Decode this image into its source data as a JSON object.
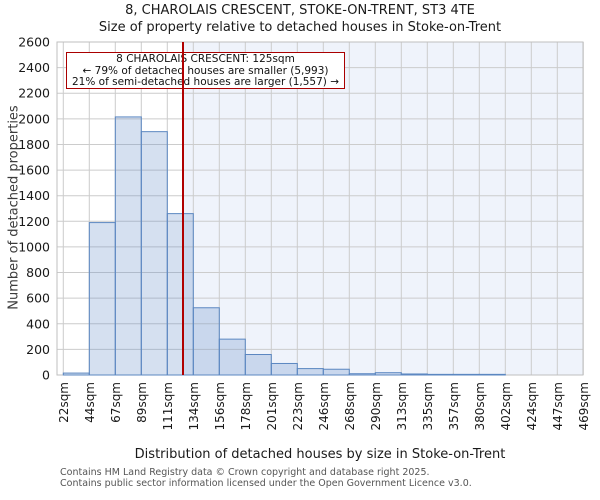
{
  "page": {
    "title_line1": "8, CHAROLAIS CRESCENT, STOKE-ON-TRENT, ST3 4TE",
    "title_line2": "Size of property relative to detached houses in Stoke-on-Trent"
  },
  "annotation": {
    "line1": "8 CHAROLAIS CRESCENT: 125sqm",
    "line2": "← 79% of detached houses are smaller (5,993)",
    "line3": "21% of semi-detached houses are larger (1,557) →"
  },
  "chart_data": {
    "type": "bar",
    "title": "8, CHAROLAIS CRESCENT, STOKE-ON-TRENT, ST3 4TE",
    "subtitle": "Size of property relative to detached houses in Stoke-on-Trent",
    "xlabel": "Distribution of detached houses by size in Stoke-on-Trent",
    "ylabel": "Number of detached properties",
    "ylim": [
      0,
      2600
    ],
    "y_tick_step": 200,
    "grid": true,
    "x_tick_labels": [
      "22sqm",
      "44sqm",
      "67sqm",
      "89sqm",
      "111sqm",
      "134sqm",
      "156sqm",
      "178sqm",
      "201sqm",
      "223sqm",
      "246sqm",
      "268sqm",
      "290sqm",
      "313sqm",
      "335sqm",
      "357sqm",
      "380sqm",
      "402sqm",
      "424sqm",
      "447sqm",
      "469sqm"
    ],
    "bin_edges_sqm": [
      22,
      44,
      67,
      89,
      111,
      134,
      156,
      178,
      201,
      223,
      246,
      268,
      290,
      313,
      335,
      357,
      380,
      402,
      424,
      447,
      469
    ],
    "values": [
      15,
      1190,
      2015,
      1900,
      1260,
      525,
      280,
      160,
      90,
      50,
      45,
      10,
      18,
      8,
      5,
      5,
      5,
      0,
      0,
      0
    ],
    "marker": {
      "label": "8 CHAROLAIS CRESCENT",
      "value_sqm": 125
    }
  },
  "footer": {
    "line1": "Contains HM Land Registry data © Crown copyright and database right 2025.",
    "line2": "Contains public sector information licensed under the Open Government Licence v3.0."
  },
  "colors": {
    "bar_fill": "rgba(104,143,201,0.28)",
    "bar_border": "#5b87c1",
    "marker_line": "#b00000",
    "annotation_border": "#aa0000",
    "grid": "#cccccc",
    "plot_border": "#bfbfbf",
    "shade_right": "#eff3fb",
    "tick_text": "#1a1a1a",
    "footer_text": "#555555"
  }
}
